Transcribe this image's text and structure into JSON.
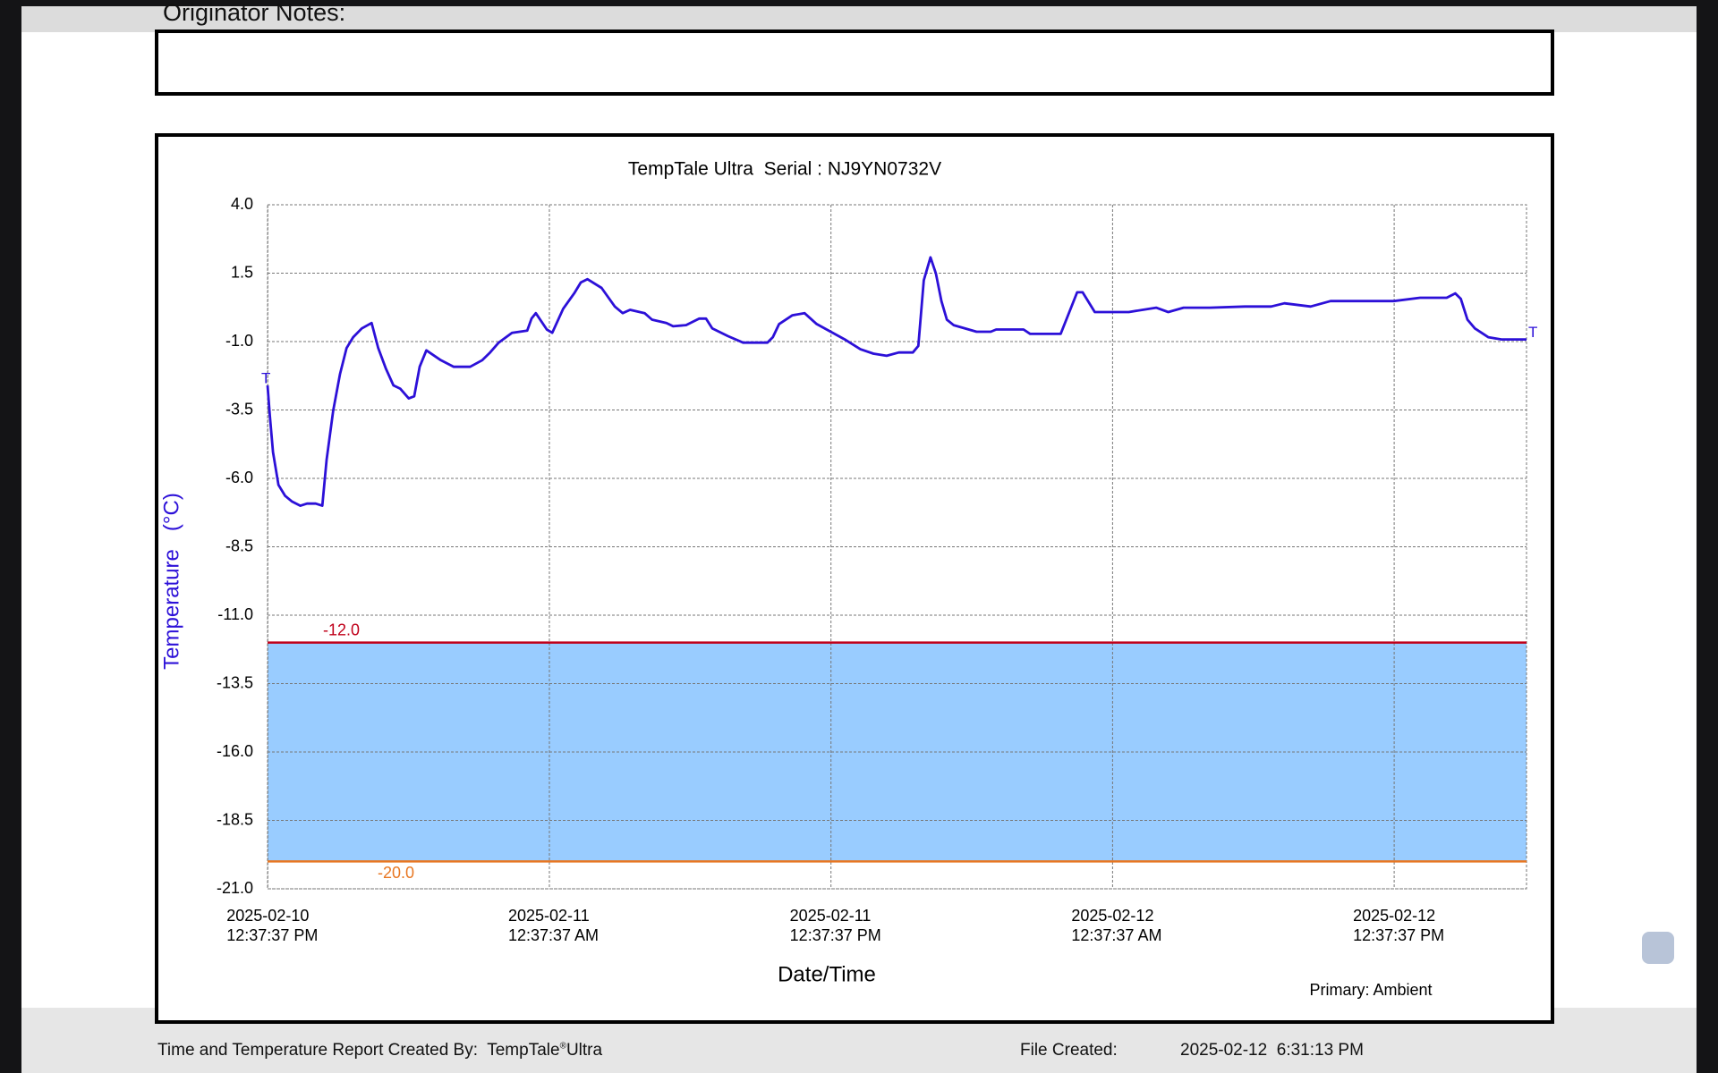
{
  "header": {
    "notes_label": "Originator Notes:"
  },
  "chart_data": {
    "type": "line",
    "title": "TempTale Ultra  Serial : NJ9YN0732V",
    "ylabel": "Temperature   (°C)",
    "xlabel": "Date/Time",
    "note": "Primary: Ambient",
    "color": "#2c10d8",
    "grid": true,
    "ylim": [
      -21,
      4
    ],
    "yticks": [
      {
        "value": 4,
        "label": "4.0"
      },
      1.5,
      {
        "value": -1,
        "label": "-1.0"
      },
      -3.5,
      {
        "value": -6,
        "label": "-6.0"
      },
      -8.5,
      {
        "value": -11,
        "label": "-11.0"
      },
      -13.5,
      {
        "value": -16,
        "label": "-16.0"
      },
      -18.5,
      {
        "value": -21,
        "label": "-21.0"
      }
    ],
    "xlim": [
      "2025-02-10 12:37",
      "2025-02-12 18:16"
    ],
    "xticks": [
      {
        "value": "2025-02-10 12:37:37",
        "label": "2025-02-10\n12:37:37 PM"
      },
      {
        "value": "2025-02-11 00:37:37",
        "label": "2025-02-11\n12:37:37 AM"
      },
      {
        "value": "2025-02-11 12:37:37",
        "label": "2025-02-11\n12:37:37 PM"
      },
      {
        "value": "2025-02-12 00:37:37",
        "label": "2025-02-12\n12:37:37 AM"
      },
      {
        "value": "2025-02-12 12:37:37",
        "label": "2025-02-12\n12:37:37 PM"
      }
    ],
    "thresholds": [
      {
        "value": -12,
        "label": "-12.0",
        "color": "#c0001a"
      },
      {
        "value": -20,
        "label": "-20.0",
        "color": "#e87722"
      }
    ],
    "range_fill": "#99ccff",
    "trip_markers": [
      "T",
      "T"
    ],
    "x": [
      "2025-02-10 12:37",
      "2025-02-10 12:43",
      "2025-02-10 12:51",
      "2025-02-10 13:05",
      "2025-02-10 13:22",
      "2025-02-10 13:39",
      "2025-02-10 14:01",
      "2025-02-10 14:18",
      "2025-02-10 14:40",
      "2025-02-10 14:57",
      "2025-02-10 15:08",
      "2025-02-10 15:25",
      "2025-02-10 15:42",
      "2025-02-10 15:59",
      "2025-02-10 16:16",
      "2025-02-10 16:38",
      "2025-02-10 17:03",
      "2025-02-10 17:20",
      "2025-02-10 17:40",
      "2025-02-10 17:59",
      "2025-02-10 18:16",
      "2025-02-10 18:38",
      "2025-02-10 18:52",
      "2025-02-10 19:06",
      "2025-02-10 19:23",
      "2025-02-10 20:00",
      "2025-02-10 20:33",
      "2025-02-10 21:15",
      "2025-02-10 21:46",
      "2025-02-10 22:06",
      "2025-02-10 22:28",
      "2025-02-10 23:02",
      "2025-02-10 23:41",
      "2025-02-10 23:52",
      "2025-02-11 00:03",
      "2025-02-11 00:31",
      "2025-02-11 00:45",
      "2025-02-11 01:13",
      "2025-02-11 01:41",
      "2025-02-11 01:58",
      "2025-02-11 02:15",
      "2025-02-11 02:51",
      "2025-02-11 03:25",
      "2025-02-11 03:45",
      "2025-02-11 04:04",
      "2025-02-11 04:41",
      "2025-02-11 05:00",
      "2025-02-11 05:37",
      "2025-02-11 05:54",
      "2025-02-11 06:27",
      "2025-02-11 07:01",
      "2025-02-11 07:18",
      "2025-02-11 07:34",
      "2025-02-11 08:14",
      "2025-02-11 08:53",
      "2025-02-11 09:55",
      "2025-02-11 10:09",
      "2025-02-11 10:25",
      "2025-02-11 10:59",
      "2025-02-11 11:30",
      "2025-02-11 12:01",
      "2025-02-11 13:13",
      "2025-02-11 13:53",
      "2025-02-11 14:26",
      "2025-02-11 15:00",
      "2025-02-11 15:31",
      "2025-02-11 16:07",
      "2025-02-11 16:21",
      "2025-02-11 16:35",
      "2025-02-11 16:52",
      "2025-02-11 17:06",
      "2025-02-11 17:20",
      "2025-02-11 17:34",
      "2025-02-11 17:51",
      "2025-02-11 18:30",
      "2025-02-11 18:50",
      "2025-02-11 19:26",
      "2025-02-11 19:40",
      "2025-02-11 20:50",
      "2025-02-11 21:07",
      "2025-02-11 22:25",
      "2025-02-11 23:07",
      "2025-02-11 23:21",
      "2025-02-11 23:52",
      "2025-02-12 01:19",
      "2025-02-12 02:29",
      "2025-02-12 03:00",
      "2025-02-12 03:39",
      "2025-02-12 04:46",
      "2025-02-12 06:16",
      "2025-02-12 07:23",
      "2025-02-12 07:57",
      "2025-02-12 09:04",
      "2025-02-12 09:55",
      "2025-02-12 11:35",
      "2025-02-12 12:37",
      "2025-02-12 13:44",
      "2025-02-12 14:52",
      "2025-02-12 15:14",
      "2025-02-12 15:28",
      "2025-02-12 15:45",
      "2025-02-12 16:04",
      "2025-02-12 16:38",
      "2025-02-12 17:12",
      "2025-02-12 17:45",
      "2025-02-12 18:16"
    ],
    "values": [
      -2.6,
      -3.72,
      -5.04,
      -6.24,
      -6.64,
      -6.84,
      -7.0,
      -6.92,
      -6.92,
      -7.0,
      -5.32,
      -3.52,
      -2.2,
      -1.24,
      -0.84,
      -0.52,
      -0.32,
      -1.24,
      -2.0,
      -2.6,
      -2.72,
      -3.08,
      -3.0,
      -1.92,
      -1.32,
      -1.68,
      -1.92,
      -1.92,
      -1.68,
      -1.4,
      -1.04,
      -0.68,
      -0.6,
      -0.16,
      0.04,
      -0.56,
      -0.68,
      0.2,
      0.76,
      1.16,
      1.28,
      0.96,
      0.28,
      0.04,
      0.16,
      0.04,
      -0.2,
      -0.32,
      -0.44,
      -0.4,
      -0.16,
      -0.16,
      -0.52,
      -0.8,
      -1.04,
      -1.04,
      -0.84,
      -0.36,
      -0.04,
      0.04,
      -0.36,
      -0.92,
      -1.28,
      -1.44,
      -1.52,
      -1.4,
      -1.4,
      -1.16,
      1.24,
      2.08,
      1.48,
      0.48,
      -0.2,
      -0.4,
      -0.56,
      -0.64,
      -0.64,
      -0.56,
      -0.56,
      -0.72,
      -0.72,
      0.8,
      0.8,
      0.08,
      0.08,
      0.24,
      0.08,
      0.24,
      0.24,
      0.28,
      0.28,
      0.4,
      0.28,
      0.48,
      0.48,
      0.48,
      0.6,
      0.6,
      0.76,
      0.56,
      -0.2,
      -0.52,
      -0.84,
      -0.92,
      -0.92,
      -0.92
    ]
  },
  "footer": {
    "created_by_label": "Time and Temperature Report Created By:",
    "product": "TempTale",
    "reg": "®",
    "product_suffix": "Ultra",
    "file_created_label": "File Created:",
    "file_created": "2025-02-12  6:31:13 PM"
  }
}
